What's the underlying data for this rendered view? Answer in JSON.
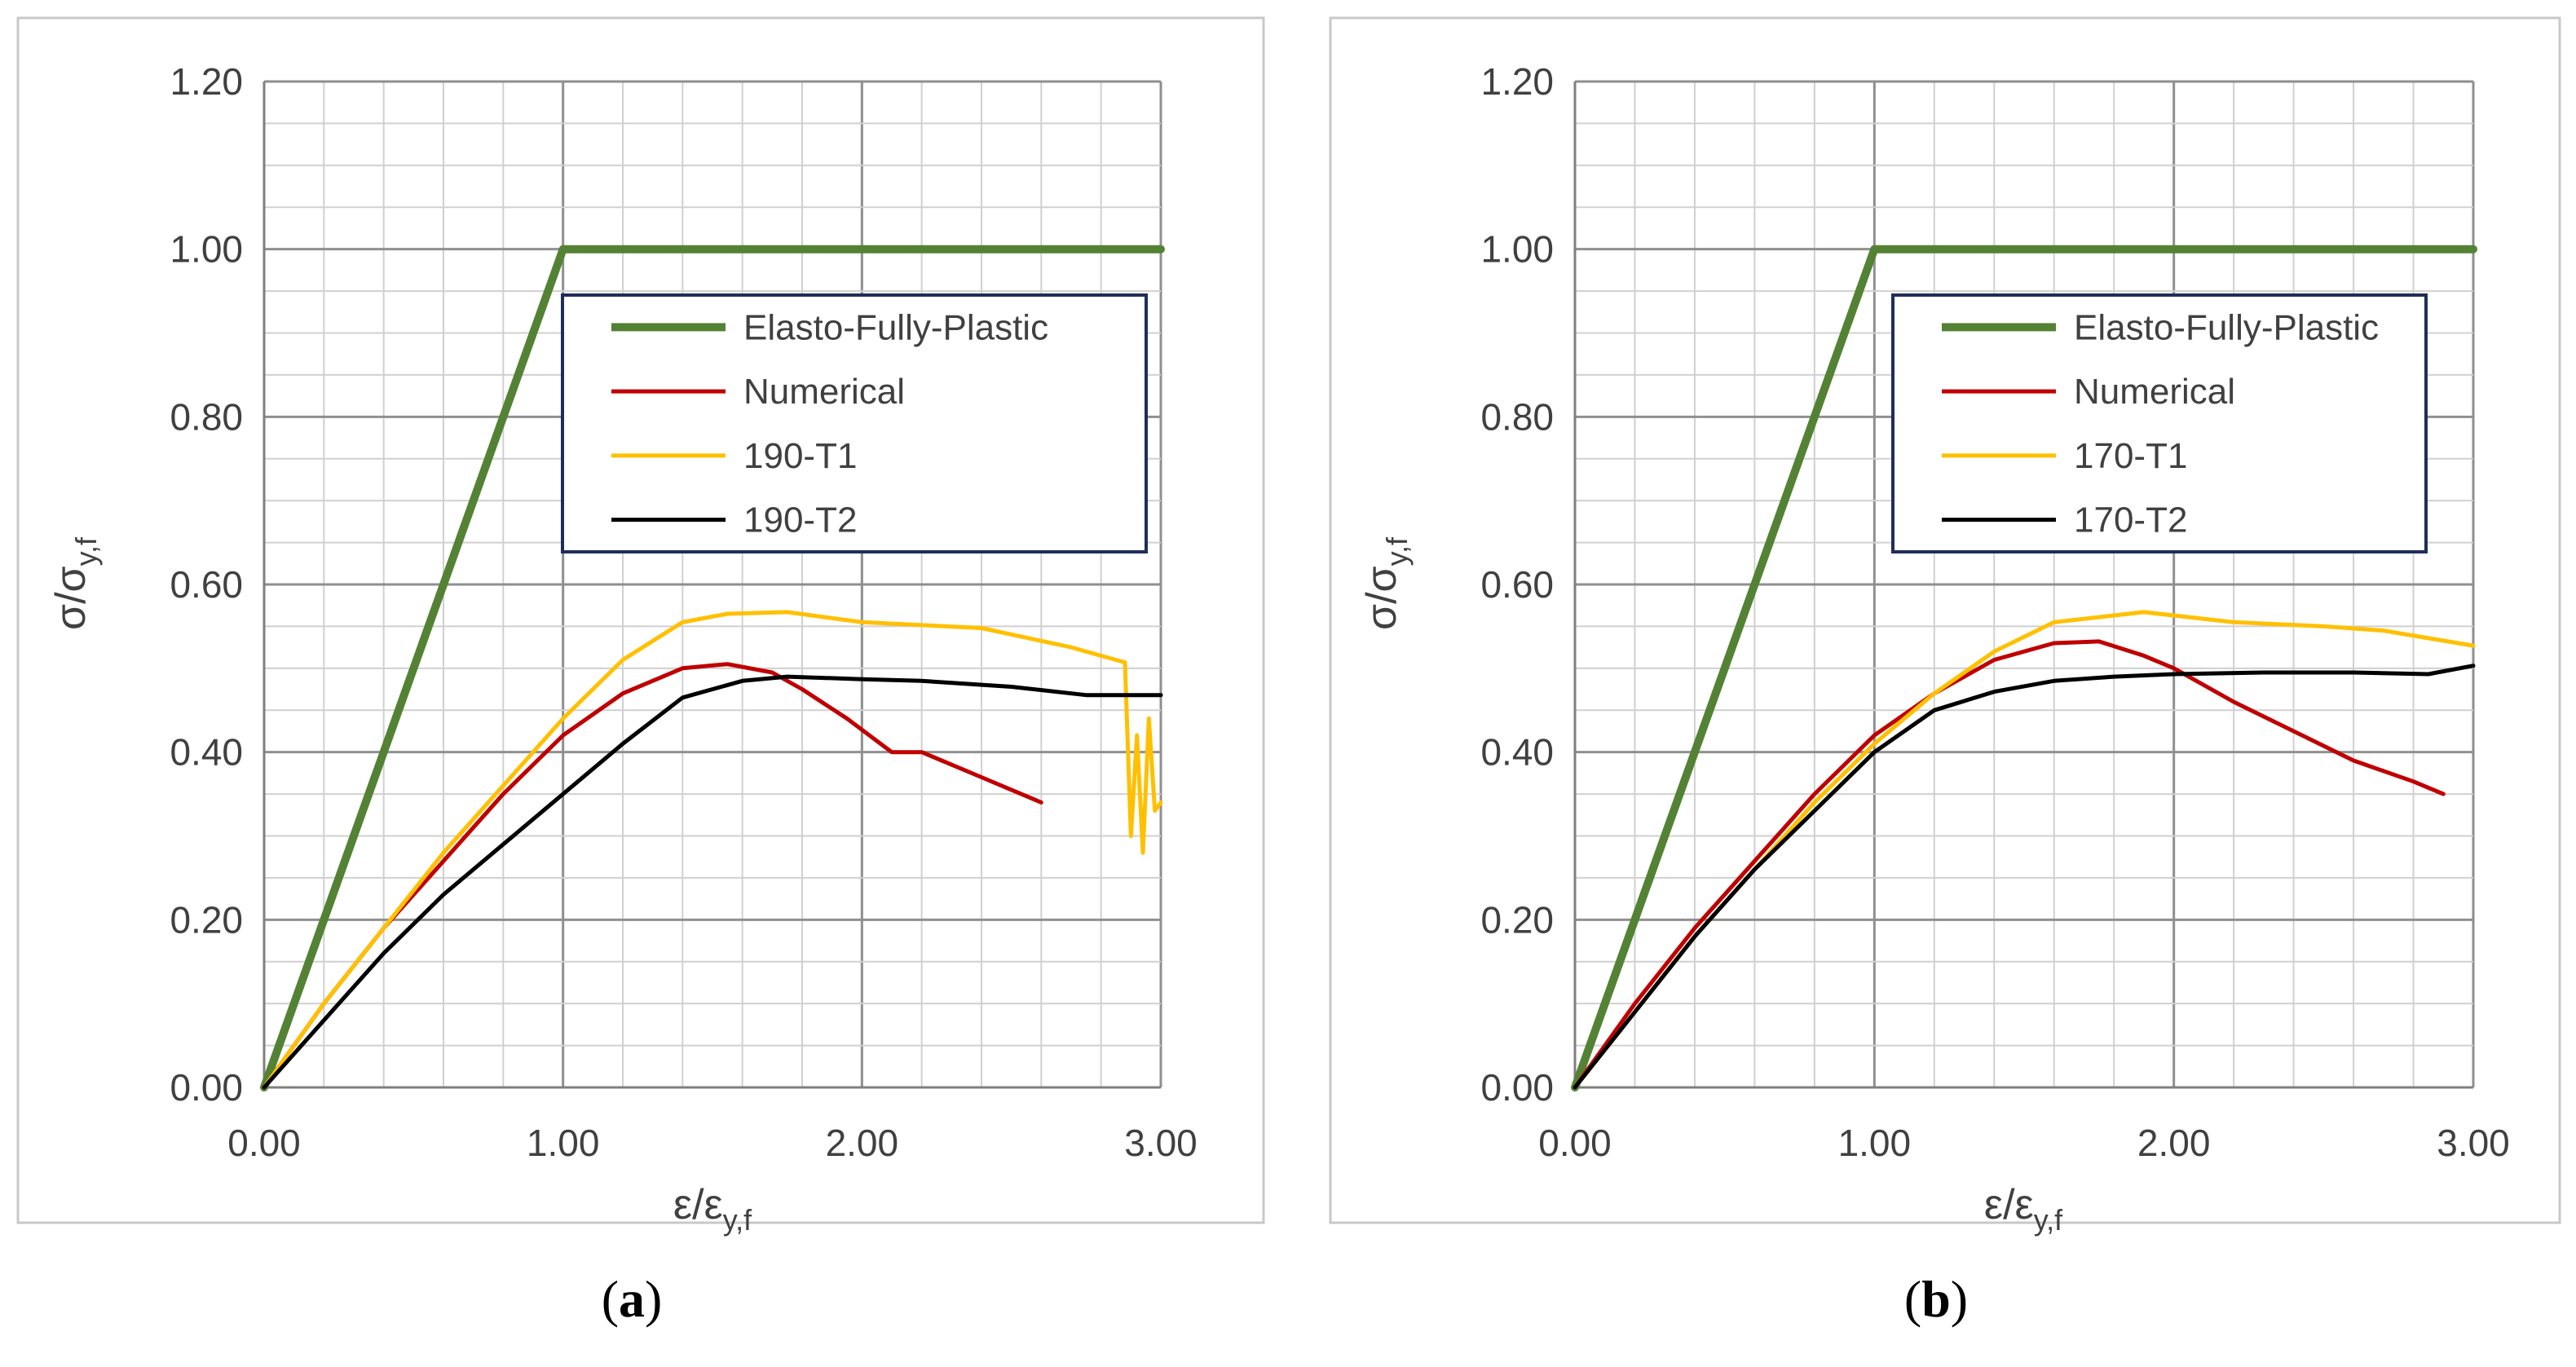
{
  "chart_data": [
    {
      "type": "line",
      "caption": {
        "open": "(",
        "letter": "a",
        "close": ")"
      },
      "xlabel": {
        "base": "ε/ε",
        "sub": "y,f"
      },
      "ylabel": {
        "base": "σ/σ",
        "sub": "y,f"
      },
      "xlim": [
        0,
        3
      ],
      "ylim": [
        0,
        1.2
      ],
      "xticks": [
        "0.00",
        "1.00",
        "2.00",
        "3.00"
      ],
      "yticks": [
        "0.00",
        "0.20",
        "0.40",
        "0.60",
        "0.80",
        "1.00",
        "1.20"
      ],
      "grid": true,
      "legend_position": "upper-right",
      "series": [
        {
          "name": "Elasto-Fully-Plastic",
          "color": "#548235",
          "width": 10,
          "x": [
            0,
            1.0,
            3.0
          ],
          "y": [
            0,
            1.0,
            1.0
          ]
        },
        {
          "name": "Numerical",
          "color": "#c00000",
          "width": 5,
          "x": [
            0,
            0.2,
            0.4,
            0.6,
            0.8,
            1.0,
            1.2,
            1.4,
            1.55,
            1.7,
            1.8,
            1.95,
            2.1,
            2.2,
            2.4,
            2.6
          ],
          "y": [
            0,
            0.1,
            0.19,
            0.27,
            0.35,
            0.42,
            0.47,
            0.5,
            0.505,
            0.495,
            0.475,
            0.44,
            0.4,
            0.4,
            0.37,
            0.34
          ]
        },
        {
          "name": "190-T1",
          "color": "#ffc000",
          "width": 5,
          "x": [
            0,
            0.2,
            0.4,
            0.6,
            0.8,
            1.0,
            1.2,
            1.4,
            1.55,
            1.75,
            2.0,
            2.4,
            2.7,
            2.88,
            2.9,
            2.92,
            2.94,
            2.96,
            2.98,
            3.0
          ],
          "y": [
            0,
            0.1,
            0.19,
            0.28,
            0.36,
            0.44,
            0.51,
            0.555,
            0.565,
            0.567,
            0.555,
            0.548,
            0.525,
            0.507,
            0.3,
            0.42,
            0.28,
            0.44,
            0.33,
            0.34
          ]
        },
        {
          "name": "190-T2",
          "color": "#000000",
          "width": 5,
          "x": [
            0,
            0.2,
            0.4,
            0.6,
            0.8,
            1.0,
            1.2,
            1.4,
            1.6,
            1.75,
            2.0,
            2.2,
            2.5,
            2.75,
            3.0
          ],
          "y": [
            0,
            0.08,
            0.16,
            0.23,
            0.29,
            0.35,
            0.41,
            0.465,
            0.485,
            0.49,
            0.487,
            0.485,
            0.478,
            0.468,
            0.468
          ]
        }
      ]
    },
    {
      "type": "line",
      "caption": {
        "open": "(",
        "letter": "b",
        "close": ")"
      },
      "xlabel": {
        "base": "ε/ε",
        "sub": "y,f"
      },
      "ylabel": {
        "base": "σ/σ",
        "sub": "y,f"
      },
      "xlim": [
        0,
        3
      ],
      "ylim": [
        0,
        1.2
      ],
      "xticks": [
        "0.00",
        "1.00",
        "2.00",
        "3.00"
      ],
      "yticks": [
        "0.00",
        "0.20",
        "0.40",
        "0.60",
        "0.80",
        "1.00",
        "1.20"
      ],
      "grid": true,
      "legend_position": "upper-right",
      "series": [
        {
          "name": "Elasto-Fully-Plastic",
          "color": "#548235",
          "width": 10,
          "x": [
            0,
            1.0,
            3.0
          ],
          "y": [
            0,
            1.0,
            1.0
          ]
        },
        {
          "name": "Numerical",
          "color": "#c00000",
          "width": 5,
          "x": [
            0,
            0.2,
            0.4,
            0.6,
            0.8,
            1.0,
            1.2,
            1.4,
            1.6,
            1.75,
            1.9,
            2.0,
            2.2,
            2.4,
            2.6,
            2.8,
            2.9
          ],
          "y": [
            0,
            0.1,
            0.19,
            0.27,
            0.35,
            0.42,
            0.47,
            0.51,
            0.53,
            0.532,
            0.515,
            0.5,
            0.46,
            0.425,
            0.39,
            0.365,
            0.35
          ]
        },
        {
          "name": "170-T1",
          "color": "#ffc000",
          "width": 5,
          "x": [
            0,
            0.2,
            0.4,
            0.6,
            0.8,
            1.0,
            1.2,
            1.4,
            1.6,
            1.9,
            2.2,
            2.5,
            2.7,
            3.0
          ],
          "y": [
            0,
            0.09,
            0.18,
            0.26,
            0.34,
            0.41,
            0.47,
            0.52,
            0.555,
            0.567,
            0.555,
            0.55,
            0.545,
            0.527
          ]
        },
        {
          "name": "170-T2",
          "color": "#000000",
          "width": 5,
          "x": [
            0,
            0.2,
            0.4,
            0.6,
            0.8,
            1.0,
            1.2,
            1.4,
            1.6,
            1.8,
            2.0,
            2.3,
            2.6,
            2.85,
            3.0
          ],
          "y": [
            0,
            0.09,
            0.18,
            0.26,
            0.33,
            0.4,
            0.45,
            0.472,
            0.485,
            0.49,
            0.493,
            0.495,
            0.495,
            0.493,
            0.503
          ]
        }
      ]
    }
  ]
}
